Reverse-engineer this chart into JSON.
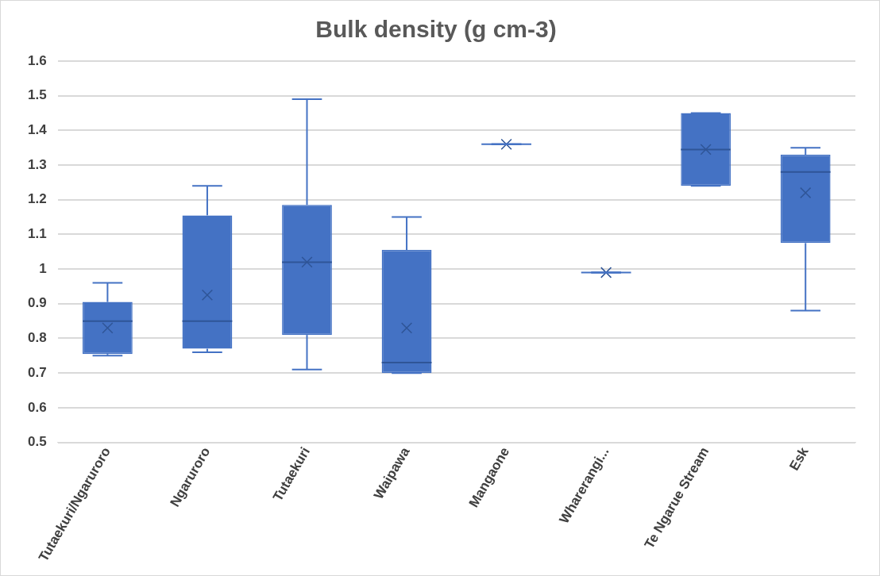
{
  "chart_data": {
    "type": "box",
    "title": "Bulk density (g cm-3)",
    "categories": [
      "Tutaekuri/Ngaruroro",
      "Ngaruroro",
      "Tutaekuri",
      "Waipawa",
      "Mangaone",
      "Wharerangi...",
      "Te Ngarue Stream",
      "Esk"
    ],
    "color": "#4472c4",
    "boxes": [
      {
        "low": 0.75,
        "q1": 0.755,
        "median": 0.85,
        "q3": 0.905,
        "high": 0.96,
        "mean": 0.83
      },
      {
        "low": 0.76,
        "q1": 0.77,
        "median": 0.85,
        "q3": 1.155,
        "high": 1.24,
        "mean": 0.925
      },
      {
        "low": 0.71,
        "q1": 0.81,
        "median": 1.02,
        "q3": 1.185,
        "high": 1.49,
        "mean": 1.02
      },
      {
        "low": 0.7,
        "q1": 0.7,
        "median": 0.73,
        "q3": 1.055,
        "high": 1.15,
        "mean": 0.83
      },
      {
        "low": 1.36,
        "q1": 1.36,
        "median": 1.36,
        "q3": 1.36,
        "high": 1.36,
        "mean": 1.36
      },
      {
        "low": 0.99,
        "q1": 0.99,
        "median": 0.99,
        "q3": 0.99,
        "high": 0.99,
        "mean": 0.99
      },
      {
        "low": 1.24,
        "q1": 1.24,
        "median": 1.345,
        "q3": 1.45,
        "high": 1.45,
        "mean": 1.345
      },
      {
        "low": 0.88,
        "q1": 1.075,
        "median": 1.28,
        "q3": 1.33,
        "high": 1.35,
        "mean": 1.22
      }
    ],
    "ylim": [
      0.5,
      1.6
    ],
    "yticks": [
      0.5,
      0.6,
      0.7,
      0.8,
      0.9,
      1,
      1.1,
      1.2,
      1.3,
      1.4,
      1.5,
      1.6
    ],
    "grid": "y",
    "legend": false
  }
}
